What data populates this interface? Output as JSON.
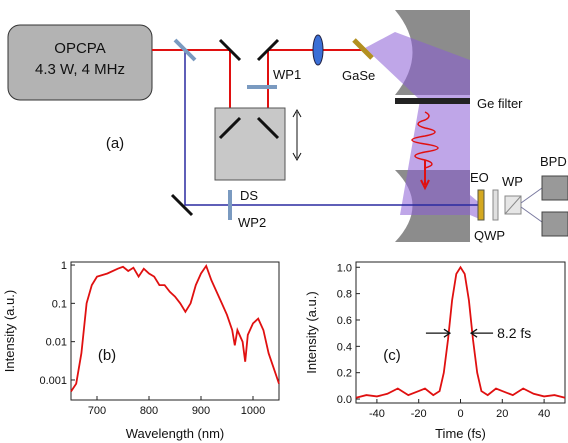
{
  "diagram": {
    "source_line1": "OPCPA",
    "source_line2": "4.3 W, 4 MHz",
    "panel_label": "(a)",
    "labels": {
      "wp1": "WP1",
      "gase": "GaSe",
      "ge_filter": "Ge filter",
      "ds": "DS",
      "wp2": "WP2",
      "eo": "EO",
      "wp": "WP",
      "qwp": "QWP",
      "bpd": "BPD"
    }
  },
  "chart_data": [
    {
      "type": "line",
      "panel_label": "(b)",
      "xlabel": "Wavelength (nm)",
      "ylabel": "Intensity (a.u.)",
      "color": "#e01010",
      "log_y": true,
      "xlim": [
        650,
        1050
      ],
      "ylim": [
        0.0003,
        1.2
      ],
      "xticks": [
        700,
        800,
        900,
        1000
      ],
      "yticks": [
        0.001,
        0.01,
        0.1,
        1
      ],
      "x": [
        650,
        660,
        670,
        680,
        690,
        700,
        720,
        740,
        750,
        760,
        770,
        780,
        790,
        800,
        810,
        820,
        830,
        840,
        850,
        860,
        870,
        880,
        890,
        900,
        910,
        920,
        930,
        940,
        950,
        960,
        965,
        970,
        980,
        985,
        990,
        1000,
        1010,
        1020,
        1030,
        1040,
        1050
      ],
      "values": [
        0.0005,
        0.0008,
        0.005,
        0.1,
        0.3,
        0.5,
        0.6,
        0.8,
        0.9,
        0.7,
        0.85,
        0.5,
        0.8,
        0.6,
        0.5,
        0.3,
        0.3,
        0.2,
        0.15,
        0.1,
        0.06,
        0.1,
        0.3,
        0.6,
        0.95,
        0.4,
        0.2,
        0.1,
        0.05,
        0.02,
        0.008,
        0.02,
        0.01,
        0.003,
        0.015,
        0.03,
        0.04,
        0.02,
        0.005,
        0.002,
        0.0008
      ]
    },
    {
      "type": "line",
      "panel_label": "(c)",
      "annotation": "8.2 fs",
      "xlabel": "Time (fs)",
      "ylabel": "Intensity (a.u.)",
      "color": "#e01010",
      "log_y": false,
      "xlim": [
        -50,
        50
      ],
      "ylim": [
        -0.03,
        1.04
      ],
      "xticks": [
        -40,
        -20,
        0,
        20,
        40
      ],
      "yticks": [
        {
          "value": 0,
          "label": "0.0"
        },
        0.2,
        0.4,
        0.6,
        0.8,
        {
          "value": 1,
          "label": "1.0"
        }
      ],
      "x": [
        -50,
        -45,
        -40,
        -35,
        -30,
        -27,
        -25,
        -20,
        -17,
        -13,
        -10,
        -8,
        -6,
        -4,
        -2,
        0,
        2,
        4,
        6,
        8,
        10,
        13,
        17,
        20,
        25,
        27,
        30,
        35,
        40,
        45,
        50
      ],
      "values": [
        0.01,
        0.03,
        0.02,
        0.04,
        0.08,
        0.05,
        0.03,
        0.06,
        0.08,
        0.03,
        0.06,
        0.2,
        0.45,
        0.75,
        0.95,
        1.0,
        0.95,
        0.75,
        0.45,
        0.2,
        0.06,
        0.03,
        0.08,
        0.06,
        0.03,
        0.05,
        0.08,
        0.04,
        0.02,
        0.03,
        0.01
      ]
    }
  ]
}
